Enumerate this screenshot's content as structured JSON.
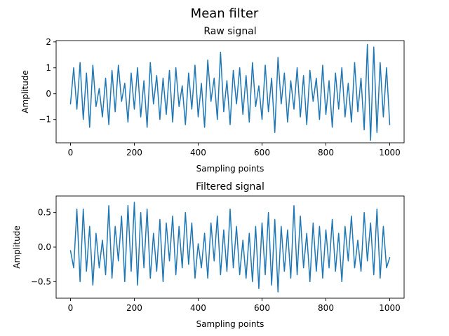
{
  "figure": {
    "title": "Mean filter"
  },
  "colors": {
    "series": "#1f77b4",
    "axes": "#000000",
    "background": "#ffffff"
  },
  "chart_data": [
    {
      "type": "line",
      "title": "Raw signal",
      "xlabel": "Sampling points",
      "ylabel": "Amplitude",
      "xlim": [
        -45,
        1045
      ],
      "ylim": [
        -1.9,
        2.05
      ],
      "xticks": [
        0,
        200,
        400,
        600,
        800,
        1000
      ],
      "xtick_labels": [
        "0",
        "200",
        "400",
        "600",
        "800",
        "1000"
      ],
      "yticks": [
        -1,
        0,
        1,
        2
      ],
      "ytick_labels": [
        "−1",
        "0",
        "1",
        "2"
      ],
      "grid": false,
      "series": [
        {
          "color": "#1f77b4",
          "x": [
            0,
            10,
            20,
            30,
            40,
            50,
            60,
            70,
            80,
            90,
            100,
            110,
            120,
            130,
            140,
            150,
            160,
            170,
            180,
            190,
            200,
            210,
            220,
            230,
            240,
            250,
            260,
            270,
            280,
            290,
            300,
            310,
            320,
            330,
            340,
            350,
            360,
            370,
            380,
            390,
            400,
            410,
            420,
            430,
            440,
            450,
            460,
            470,
            480,
            490,
            500,
            510,
            520,
            530,
            540,
            550,
            560,
            570,
            580,
            590,
            600,
            610,
            620,
            630,
            640,
            650,
            660,
            670,
            680,
            690,
            700,
            710,
            720,
            730,
            740,
            750,
            760,
            770,
            780,
            790,
            800,
            810,
            820,
            830,
            840,
            850,
            860,
            870,
            880,
            890,
            900,
            910,
            920,
            930,
            940,
            950,
            960,
            970,
            980,
            990,
            1000
          ],
          "y": [
            -0.4,
            1.0,
            -0.6,
            1.2,
            -1.0,
            0.8,
            -1.3,
            1.1,
            -0.5,
            0.2,
            -0.9,
            0.6,
            -1.2,
            0.9,
            -0.7,
            1.1,
            -0.3,
            0.4,
            -1.1,
            0.8,
            -0.6,
            1.0,
            -0.9,
            0.5,
            -1.3,
            1.2,
            -0.4,
            0.7,
            -1.0,
            0.6,
            -0.8,
            0.9,
            -1.1,
            1.0,
            -0.5,
            0.3,
            -1.2,
            0.8,
            -0.6,
            1.1,
            -0.9,
            0.4,
            -1.3,
            1.3,
            -0.3,
            0.6,
            -1.0,
            1.6,
            -0.7,
            0.5,
            -1.2,
            0.9,
            -0.4,
            1.0,
            -0.8,
            0.7,
            -1.1,
            1.2,
            -0.5,
            0.3,
            -1.0,
            1.1,
            -0.7,
            0.6,
            -1.5,
            1.4,
            -0.4,
            0.8,
            -1.1,
            0.5,
            -0.6,
            1.0,
            -0.9,
            0.7,
            -1.2,
            0.9,
            -0.3,
            0.6,
            -1.0,
            1.1,
            -0.8,
            0.5,
            -1.3,
            0.8,
            -0.6,
            1.0,
            -0.9,
            0.4,
            -1.1,
            1.2,
            -0.7,
            0.6,
            -1.4,
            1.9,
            -1.8,
            1.8,
            -1.5,
            1.2,
            -0.9,
            1.0,
            -1.2
          ]
        }
      ]
    },
    {
      "type": "line",
      "title": "Filtered signal",
      "xlabel": "Sampling points",
      "ylabel": "Amplitude",
      "xlim": [
        -45,
        1045
      ],
      "ylim": [
        -0.74,
        0.74
      ],
      "xticks": [
        0,
        200,
        400,
        600,
        800,
        1000
      ],
      "xtick_labels": [
        "0",
        "200",
        "400",
        "600",
        "800",
        "1000"
      ],
      "yticks": [
        -0.5,
        0.0,
        0.5
      ],
      "ytick_labels": [
        "−0.5",
        "0.0",
        "0.5"
      ],
      "grid": false,
      "series": [
        {
          "color": "#1f77b4",
          "x": [
            0,
            10,
            20,
            30,
            40,
            50,
            60,
            70,
            80,
            90,
            100,
            110,
            120,
            130,
            140,
            150,
            160,
            170,
            180,
            190,
            200,
            210,
            220,
            230,
            240,
            250,
            260,
            270,
            280,
            290,
            300,
            310,
            320,
            330,
            340,
            350,
            360,
            370,
            380,
            390,
            400,
            410,
            420,
            430,
            440,
            450,
            460,
            470,
            480,
            490,
            500,
            510,
            520,
            530,
            540,
            550,
            560,
            570,
            580,
            590,
            600,
            610,
            620,
            630,
            640,
            650,
            660,
            670,
            680,
            690,
            700,
            710,
            720,
            730,
            740,
            750,
            760,
            770,
            780,
            790,
            800,
            810,
            820,
            830,
            840,
            850,
            860,
            870,
            880,
            890,
            900,
            910,
            920,
            930,
            940,
            950,
            960,
            970,
            980,
            990,
            1000
          ],
          "y": [
            -0.05,
            -0.3,
            0.55,
            -0.5,
            0.55,
            -0.35,
            0.3,
            -0.55,
            0.2,
            -0.3,
            0.1,
            -0.4,
            0.6,
            -0.45,
            0.3,
            -0.2,
            0.45,
            -0.5,
            0.6,
            -0.35,
            0.65,
            -0.55,
            0.5,
            -0.3,
            0.55,
            -0.45,
            0.2,
            -0.35,
            0.4,
            -0.5,
            0.35,
            -0.2,
            0.45,
            -0.4,
            0.3,
            -0.3,
            0.5,
            -0.25,
            0.35,
            -0.45,
            0.05,
            -0.3,
            0.2,
            -0.45,
            0.35,
            -0.2,
            0.45,
            -0.4,
            0.25,
            -0.35,
            0.55,
            -0.3,
            0.3,
            -0.4,
            0.1,
            -0.45,
            0.2,
            -0.5,
            0.3,
            -0.6,
            0.35,
            -0.4,
            0.5,
            -0.55,
            0.4,
            -0.65,
            0.3,
            -0.35,
            0.25,
            -0.45,
            0.6,
            -0.4,
            0.45,
            -0.3,
            0.2,
            -0.5,
            0.35,
            -0.35,
            0.3,
            -0.45,
            0.25,
            -0.3,
            0.4,
            -0.35,
            0.2,
            -0.5,
            0.3,
            -0.2,
            0.45,
            -0.3,
            0.1,
            -0.35,
            0.5,
            -0.2,
            0.35,
            -0.4,
            0.55,
            -0.45,
            0.3,
            -0.3,
            -0.15
          ]
        }
      ]
    }
  ]
}
